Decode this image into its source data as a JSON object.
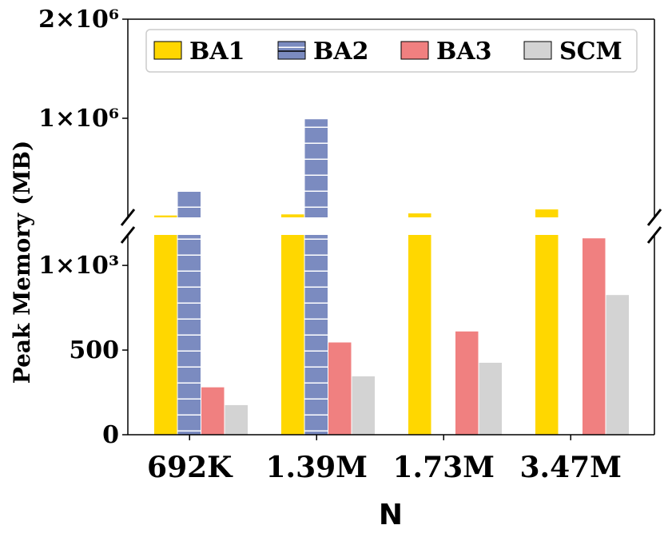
{
  "chart_data": {
    "type": "bar",
    "xlabel": "N",
    "ylabel": "Peak Memory (MB)",
    "categories": [
      "692K",
      "1.39M",
      "1.73M",
      "3.47M"
    ],
    "series": [
      {
        "name": "BA1",
        "color": "#FFD700",
        "hatch": "none",
        "values": [
          19000,
          30000,
          40000,
          80000
        ]
      },
      {
        "name": "BA2",
        "color": "#7B8BC0",
        "hatch": "horizontal",
        "values": [
          260000,
          990000,
          null,
          null
        ]
      },
      {
        "name": "BA3",
        "color": "#F08080",
        "hatch": "none",
        "values": [
          280,
          545,
          610,
          1160
        ]
      },
      {
        "name": "SCM",
        "color": "#D3D3D3",
        "hatch": "none",
        "values": [
          175,
          345,
          425,
          825
        ]
      }
    ],
    "y_axis_break": true,
    "lower_axis": {
      "ylim": [
        0,
        1180
      ],
      "ticks": [
        0,
        500,
        1000
      ],
      "tick_labels": [
        "0",
        "500",
        "1×10³"
      ]
    },
    "upper_axis": {
      "ylim": [
        0,
        2000000
      ],
      "ticks": [
        1000000,
        2000000
      ],
      "tick_labels": [
        "1×10⁶",
        "2×10⁶"
      ]
    },
    "legend": {
      "placement": "top",
      "ncol": 4
    },
    "grid": false
  }
}
